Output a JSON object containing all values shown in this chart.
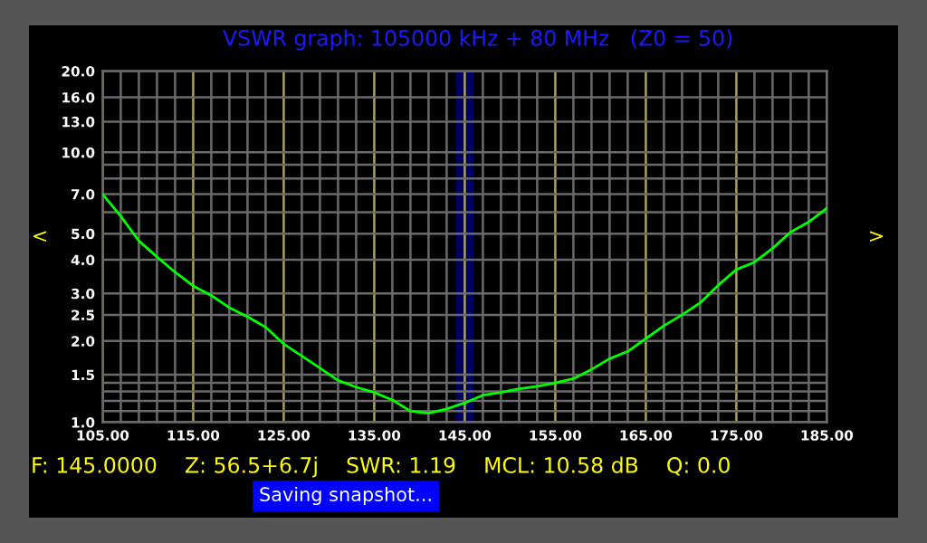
{
  "chart_data": {
    "type": "line",
    "title": "VSWR graph: 105000 kHz + 80 MHz   (Z0 = 50)",
    "x": [
      105,
      107,
      109,
      111,
      113,
      115,
      117,
      119,
      121,
      123,
      125,
      127,
      129,
      131,
      133,
      135,
      137,
      139,
      141,
      143,
      145,
      147,
      149,
      151,
      153,
      155,
      157,
      159,
      161,
      163,
      165,
      167,
      169,
      171,
      173,
      175,
      177,
      179,
      181,
      183,
      185
    ],
    "series": [
      {
        "color": "#00ff00",
        "values": [
          7.0,
          5.8,
          4.7,
          4.1,
          3.6,
          3.2,
          2.95,
          2.66,
          2.46,
          2.25,
          1.95,
          1.76,
          1.59,
          1.43,
          1.35,
          1.29,
          1.21,
          1.1,
          1.08,
          1.12,
          1.18,
          1.26,
          1.29,
          1.33,
          1.36,
          1.4,
          1.45,
          1.57,
          1.72,
          1.83,
          2.04,
          2.28,
          2.5,
          2.77,
          3.22,
          3.68,
          3.92,
          4.41,
          5.07,
          5.52,
          6.22
        ]
      }
    ],
    "xlim": [
      105,
      185
    ],
    "xticks": [
      {
        "value": 105,
        "label": "105.00"
      },
      {
        "value": 107,
        "label": null
      },
      {
        "value": 109,
        "label": null
      },
      {
        "value": 111,
        "label": null
      },
      {
        "value": 113,
        "label": null
      },
      {
        "value": 115,
        "label": "115.00"
      },
      {
        "value": 117,
        "label": null
      },
      {
        "value": 119,
        "label": null
      },
      {
        "value": 121,
        "label": null
      },
      {
        "value": 123,
        "label": null
      },
      {
        "value": 125,
        "label": "125.00"
      },
      {
        "value": 127,
        "label": null
      },
      {
        "value": 129,
        "label": null
      },
      {
        "value": 131,
        "label": null
      },
      {
        "value": 133,
        "label": null
      },
      {
        "value": 135,
        "label": "135.00"
      },
      {
        "value": 137,
        "label": null
      },
      {
        "value": 139,
        "label": null
      },
      {
        "value": 141,
        "label": null
      },
      {
        "value": 143,
        "label": null
      },
      {
        "value": 145,
        "label": "145.00"
      },
      {
        "value": 147,
        "label": null
      },
      {
        "value": 149,
        "label": null
      },
      {
        "value": 151,
        "label": null
      },
      {
        "value": 153,
        "label": null
      },
      {
        "value": 155,
        "label": "155.00"
      },
      {
        "value": 157,
        "label": null
      },
      {
        "value": 159,
        "label": null
      },
      {
        "value": 161,
        "label": null
      },
      {
        "value": 163,
        "label": null
      },
      {
        "value": 165,
        "label": "165.00"
      },
      {
        "value": 167,
        "label": null
      },
      {
        "value": 169,
        "label": null
      },
      {
        "value": 171,
        "label": null
      },
      {
        "value": 173,
        "label": null
      },
      {
        "value": 175,
        "label": "175.00"
      },
      {
        "value": 177,
        "label": null
      },
      {
        "value": 179,
        "label": null
      },
      {
        "value": 181,
        "label": null
      },
      {
        "value": 183,
        "label": null
      },
      {
        "value": 185,
        "label": "185.00"
      }
    ],
    "ylim": [
      1,
      20
    ],
    "yticks": [
      {
        "value": 1,
        "label": "1.0"
      },
      {
        "value": 1.1,
        "label": null
      },
      {
        "value": 1.2,
        "label": null
      },
      {
        "value": 1.3,
        "label": null
      },
      {
        "value": 1.4,
        "label": null
      },
      {
        "value": 1.5,
        "label": "1.5"
      },
      {
        "value": 2,
        "label": "2.0"
      },
      {
        "value": 2.5,
        "label": "2.5"
      },
      {
        "value": 3,
        "label": "3.0"
      },
      {
        "value": 4,
        "label": "4.0"
      },
      {
        "value": 5,
        "label": "5.0"
      },
      {
        "value": 6,
        "label": null
      },
      {
        "value": 7,
        "label": "7.0"
      },
      {
        "value": 8,
        "label": null
      },
      {
        "value": 9,
        "label": null
      },
      {
        "value": 10,
        "label": "10.0"
      },
      {
        "value": 13,
        "label": "13.0"
      },
      {
        "value": 16,
        "label": "16.0"
      },
      {
        "value": 20,
        "label": "20.0"
      }
    ],
    "log": "y",
    "grid": true,
    "bands": [
      {
        "axis": "x",
        "from": 144,
        "to": 146,
        "color": "#000060"
      }
    ],
    "annotations": [
      "F: 145.0000    Z: 56.5+6.7j    SWR: 1.19    MCL: 10.58 dB    Q: 0.0",
      "Saving snapshot...",
      "<",
      ">"
    ]
  }
}
